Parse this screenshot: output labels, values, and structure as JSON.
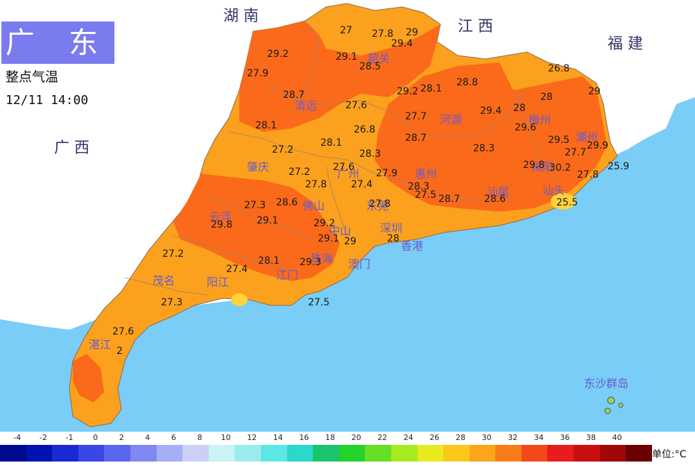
{
  "header": {
    "region_title": "广 东",
    "subtitle": "整点气温",
    "timestamp": "12/11 14:00"
  },
  "neighbors": [
    {
      "key": "hunan",
      "label": "湖 南"
    },
    {
      "key": "jiangxi",
      "label": "江 西"
    },
    {
      "key": "fujian",
      "label": "福 建"
    },
    {
      "key": "guangxi",
      "label": "广 西"
    }
  ],
  "cities": [
    {
      "key": "shaoguan",
      "label": "韶关"
    },
    {
      "key": "qingyuan",
      "label": "清远"
    },
    {
      "key": "heyuan",
      "label": "河源"
    },
    {
      "key": "meizhou",
      "label": "梅州"
    },
    {
      "key": "chaozhou",
      "label": "潮州"
    },
    {
      "key": "jieyang",
      "label": "揭阳"
    },
    {
      "key": "shantou",
      "label": "汕头"
    },
    {
      "key": "shanwei",
      "label": "汕尾"
    },
    {
      "key": "huizhou",
      "label": "惠州"
    },
    {
      "key": "zhaoqing",
      "label": "肇庆"
    },
    {
      "key": "foshan",
      "label": "佛山"
    },
    {
      "key": "guangzhou",
      "label": "广州"
    },
    {
      "key": "dongguan",
      "label": "东莞"
    },
    {
      "key": "shenzhen",
      "label": "深圳"
    },
    {
      "key": "zhongshan",
      "label": "中山"
    },
    {
      "key": "zhuhai",
      "label": "珠海"
    },
    {
      "key": "aomen",
      "label": "澳门"
    },
    {
      "key": "xianggang",
      "label": "香港"
    },
    {
      "key": "jiangmen",
      "label": "江门"
    },
    {
      "key": "yunfu",
      "label": "云浮"
    },
    {
      "key": "maoming",
      "label": "茂名"
    },
    {
      "key": "yangjiang",
      "label": "阳江"
    },
    {
      "key": "zhanjiang",
      "label": "湛江"
    },
    {
      "key": "dongsha",
      "label": "东沙群岛"
    }
  ],
  "stations": [
    {
      "key": "s01",
      "value": "27"
    },
    {
      "key": "s02",
      "value": "27.8"
    },
    {
      "key": "s03",
      "value": "29"
    },
    {
      "key": "s04",
      "value": "29.4"
    },
    {
      "key": "s05",
      "value": "29.2"
    },
    {
      "key": "s06",
      "value": "29.1"
    },
    {
      "key": "s07",
      "value": "28.5"
    },
    {
      "key": "s08",
      "value": "27.9"
    },
    {
      "key": "s09",
      "value": "26.8"
    },
    {
      "key": "s10",
      "value": "28.7"
    },
    {
      "key": "s11",
      "value": "29.2"
    },
    {
      "key": "s12",
      "value": "28.1"
    },
    {
      "key": "s13",
      "value": "28.8"
    },
    {
      "key": "s14",
      "value": "28"
    },
    {
      "key": "s15",
      "value": "29"
    },
    {
      "key": "s16",
      "value": "27.6"
    },
    {
      "key": "s17",
      "value": "27.7"
    },
    {
      "key": "s18",
      "value": "29.4"
    },
    {
      "key": "s19",
      "value": "28"
    },
    {
      "key": "s20",
      "value": "28.1"
    },
    {
      "key": "s21",
      "value": "26.8"
    },
    {
      "key": "s22",
      "value": "29.6"
    },
    {
      "key": "s23",
      "value": "28.7"
    },
    {
      "key": "s24",
      "value": "29.5"
    },
    {
      "key": "s25",
      "value": "27.2"
    },
    {
      "key": "s26",
      "value": "28.1"
    },
    {
      "key": "s27",
      "value": "28.3"
    },
    {
      "key": "s28",
      "value": "27.7"
    },
    {
      "key": "s29",
      "value": "29.9"
    },
    {
      "key": "s30",
      "value": "28.3"
    },
    {
      "key": "s31",
      "value": "29.8"
    },
    {
      "key": "s32",
      "value": "30.2"
    },
    {
      "key": "s33",
      "value": "25.9"
    },
    {
      "key": "s34",
      "value": "27.2"
    },
    {
      "key": "s35",
      "value": "27.6"
    },
    {
      "key": "s36",
      "value": "27.9"
    },
    {
      "key": "s37",
      "value": "27.8"
    },
    {
      "key": "s38",
      "value": "27.8"
    },
    {
      "key": "s39",
      "value": "27.4"
    },
    {
      "key": "s40",
      "value": "28.3"
    },
    {
      "key": "s41",
      "value": "27.3"
    },
    {
      "key": "s42",
      "value": "28.6"
    },
    {
      "key": "s43",
      "value": "27.5"
    },
    {
      "key": "s44",
      "value": "28.7"
    },
    {
      "key": "s45",
      "value": "28.6"
    },
    {
      "key": "s46",
      "value": "27.8"
    },
    {
      "key": "s47",
      "value": "25.5"
    },
    {
      "key": "s48",
      "value": "29.8"
    },
    {
      "key": "s49",
      "value": "29.1"
    },
    {
      "key": "s50",
      "value": "29.2"
    },
    {
      "key": "s51",
      "value": "29.1"
    },
    {
      "key": "s52",
      "value": "29"
    },
    {
      "key": "s53",
      "value": "28"
    },
    {
      "key": "s54",
      "value": "27.2"
    },
    {
      "key": "s55",
      "value": "28.1"
    },
    {
      "key": "s56",
      "value": "29.3"
    },
    {
      "key": "s57",
      "value": "27.4"
    },
    {
      "key": "s58",
      "value": "27.3"
    },
    {
      "key": "s59",
      "value": "27.5"
    },
    {
      "key": "s60",
      "value": "27.6"
    },
    {
      "key": "s61",
      "value": "2"
    }
  ],
  "legend": {
    "ticks": [
      "-4",
      "-2",
      "-1",
      "0",
      "2",
      "4",
      "6",
      "8",
      "10",
      "12",
      "14",
      "16",
      "18",
      "20",
      "22",
      "24",
      "26",
      "28",
      "30",
      "32",
      "34",
      "36",
      "38",
      "40"
    ],
    "colors": [
      "#000a8f",
      "#0012b0",
      "#1a2ad2",
      "#3a46e6",
      "#5a66ee",
      "#8088f2",
      "#a8aef6",
      "#cccff8",
      "#c8f4f6",
      "#9cecee",
      "#5ce6e6",
      "#2ad8cc",
      "#1ac46a",
      "#24d22a",
      "#66e024",
      "#a6ea22",
      "#e8ea20",
      "#fac81c",
      "#fca41a",
      "#fa7c18",
      "#f54818",
      "#e81c1c",
      "#c81010",
      "#a00808",
      "#6a0000"
    ],
    "unit": "单位:°C"
  },
  "colors": {
    "sea": "#79cdf6",
    "land_outside": "#ffffff",
    "temp_26_28": "#fba11d",
    "temp_28_30": "#fa6a1a",
    "temp_below_26": "#ffd33a",
    "title_box": "#7b7bf0"
  }
}
